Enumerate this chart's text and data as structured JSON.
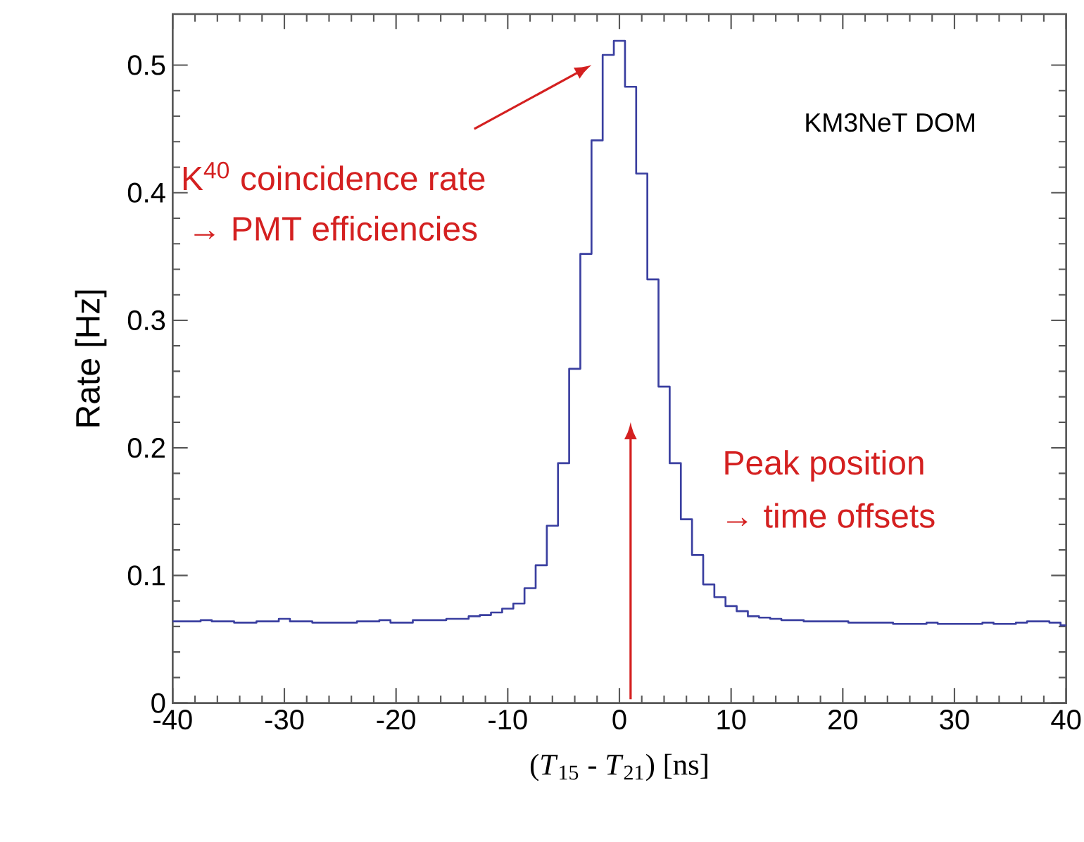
{
  "chart_data": {
    "type": "histogram",
    "xlabel": "(*T*$_{15}$ - *T*$_{21}$) [ns]",
    "ylabel": "Rate [Hz]",
    "bins": [
      -40,
      -39.5,
      -38.5,
      -37.5,
      -36.5,
      -35.5,
      -34.5,
      -33.5,
      -32.5,
      -31.5,
      -30.5,
      -29.5,
      -28.5,
      -27.5,
      -26.5,
      -25.5,
      -24.5,
      -23.5,
      -22.5,
      -21.5,
      -20.5,
      -19.5,
      -18.5,
      -17.5,
      -16.5,
      -15.5,
      -14.5,
      -13.5,
      -12.5,
      -11.5,
      -10.5,
      -9.5,
      -8.5,
      -7.5,
      -6.5,
      -5.5,
      -4.5,
      -3.5,
      -2.5,
      -1.5,
      -0.5,
      0.5,
      1.5,
      2.5,
      3.5,
      4.5,
      5.5,
      6.5,
      7.5,
      8.5,
      9.5,
      10.5,
      11.5,
      12.5,
      13.5,
      14.5,
      15.5,
      16.5,
      17.5,
      18.5,
      19.5,
      20.5,
      21.5,
      22.5,
      23.5,
      24.5,
      25.5,
      26.5,
      27.5,
      28.5,
      29.5,
      30.5,
      31.5,
      32.5,
      33.5,
      34.5,
      35.5,
      36.5,
      37.5,
      38.5,
      39.5,
      40
    ],
    "values": [
      0.064,
      0.064,
      0.064,
      0.065,
      0.064,
      0.064,
      0.063,
      0.063,
      0.064,
      0.064,
      0.066,
      0.064,
      0.064,
      0.063,
      0.063,
      0.063,
      0.063,
      0.064,
      0.064,
      0.065,
      0.063,
      0.063,
      0.065,
      0.065,
      0.065,
      0.066,
      0.066,
      0.068,
      0.069,
      0.071,
      0.074,
      0.078,
      0.09,
      0.108,
      0.139,
      0.188,
      0.262,
      0.352,
      0.441,
      0.508,
      0.519,
      0.483,
      0.415,
      0.332,
      0.248,
      0.188,
      0.144,
      0.116,
      0.093,
      0.083,
      0.076,
      0.072,
      0.068,
      0.067,
      0.066,
      0.065,
      0.065,
      0.064,
      0.064,
      0.064,
      0.064,
      0.063,
      0.063,
      0.063,
      0.063,
      0.062,
      0.062,
      0.062,
      0.063,
      0.062,
      0.062,
      0.062,
      0.062,
      0.063,
      0.062,
      0.062,
      0.063,
      0.064,
      0.064,
      0.063,
      0.061
    ],
    "color": "#3a3fa0",
    "xlim": [
      -40,
      40
    ],
    "xticks": [
      -40,
      -30,
      -20,
      -10,
      0,
      10,
      20,
      30,
      40
    ],
    "ylim": [
      0,
      0.54
    ],
    "yticks": [
      0,
      0.1,
      0.2,
      0.3,
      0.4,
      0.5
    ],
    "annotations": [
      "K$^{40}$ coincidence rate",
      "→ PMT efficiencies",
      "Peak position",
      "→ time offsets",
      "KM3NeT DOM"
    ]
  }
}
